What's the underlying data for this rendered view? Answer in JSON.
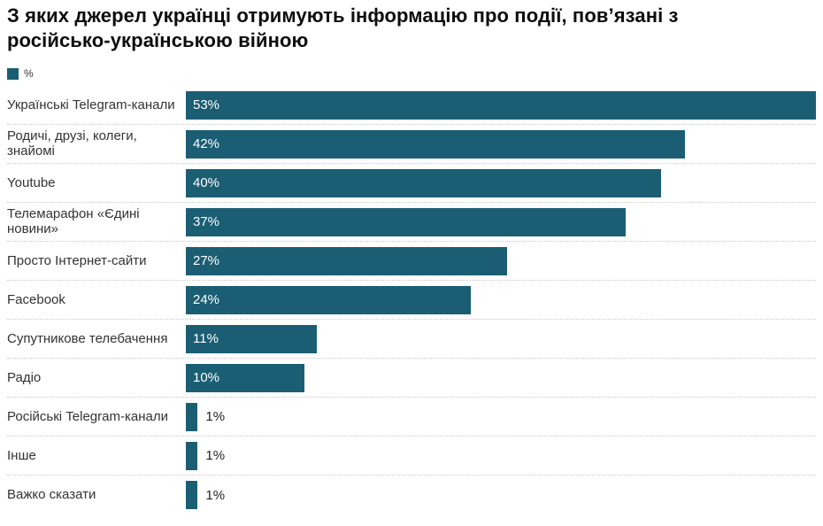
{
  "header": {
    "title": "З яких джерел українці отримують інформацію про події, пов’язані з російсько-українською війною"
  },
  "legend": {
    "label": "%"
  },
  "colors": {
    "bar": "#1b5e74",
    "separator": "#c9c9c9",
    "label_text": "#333333",
    "value_inside": "#ffffff",
    "value_outside": "#222222"
  },
  "chart_data": {
    "type": "bar",
    "orientation": "horizontal",
    "title": "З яких джерел українці отримують інформацію про події, пов’язані з російсько-українською війною",
    "legend_entries": [
      "%"
    ],
    "legend_position": "top-left",
    "grid": false,
    "xlim": [
      0,
      53
    ],
    "value_suffix": "%",
    "categories": [
      "Українські Telegram-канали",
      "Родичі, друзі, колеги, знайомі",
      "Youtube",
      "Телемарафон «Єдині новини»",
      "Просто Інтернет-сайти",
      "Facebook",
      "Супутникове телебачення",
      "Радіо",
      "Російські Telegram-канали",
      "Інше",
      "Важко сказати"
    ],
    "values": [
      53,
      42,
      40,
      37,
      27,
      24,
      11,
      10,
      1,
      1,
      1
    ],
    "value_labels": [
      "53%",
      "42%",
      "40%",
      "37%",
      "27%",
      "24%",
      "11%",
      "10%",
      "1%",
      "1%",
      "1%"
    ]
  }
}
